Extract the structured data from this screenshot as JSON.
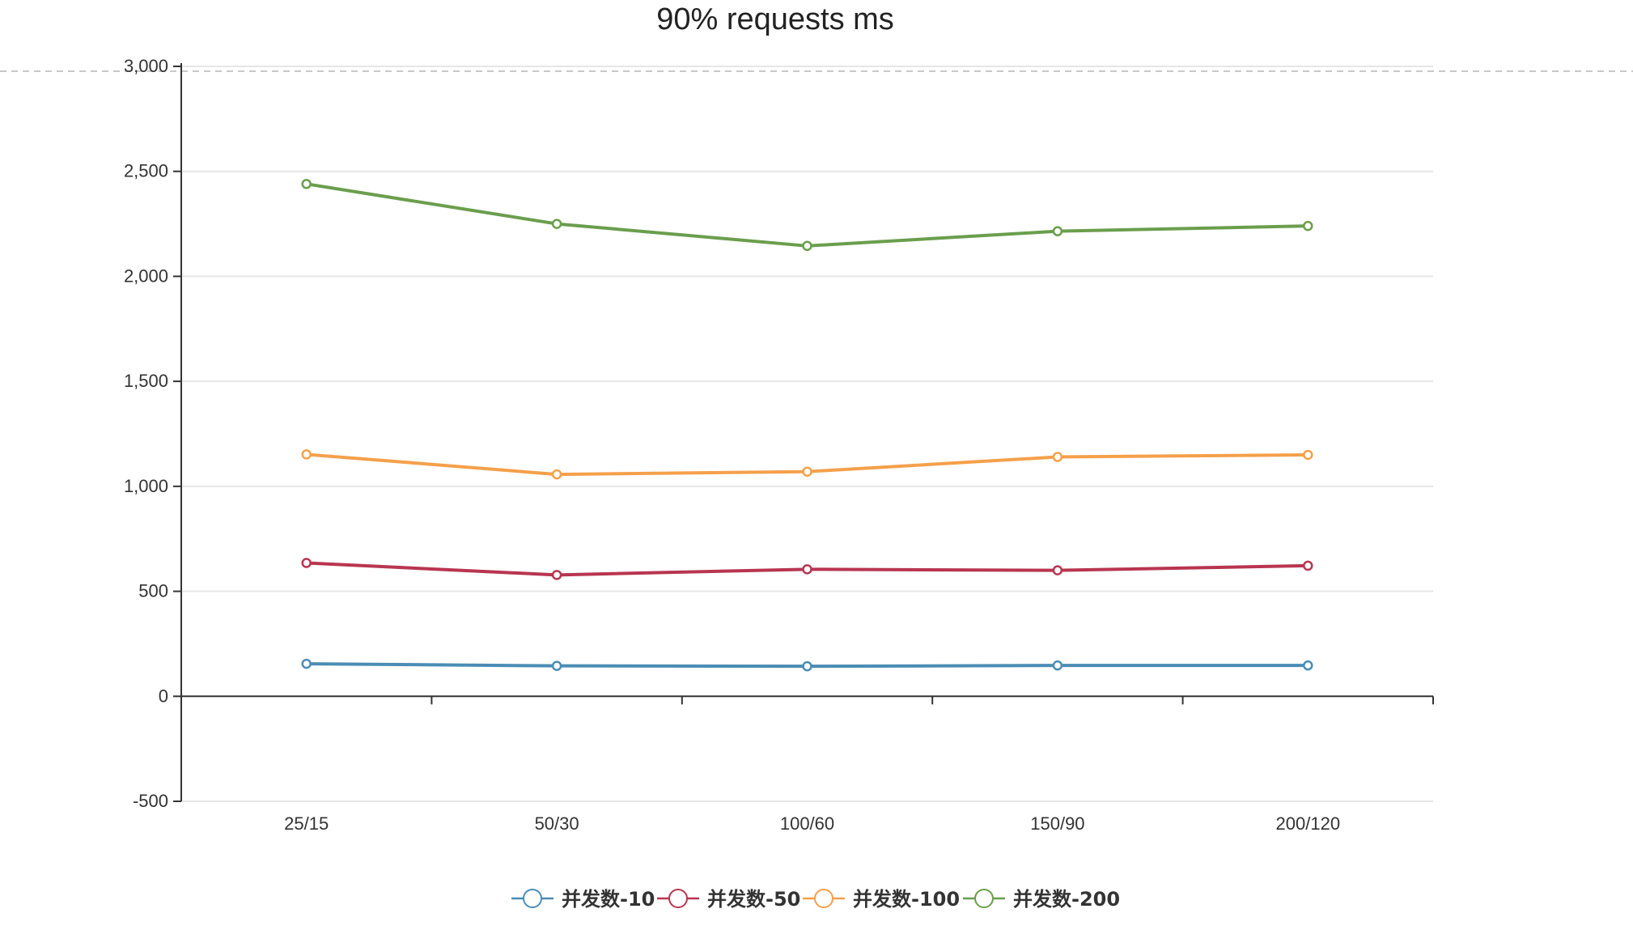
{
  "chart_data": {
    "type": "line",
    "title": "90% requests ms",
    "categories": [
      "25/15",
      "50/30",
      "100/60",
      "150/90",
      "200/120"
    ],
    "ylim": [
      -500,
      3000
    ],
    "yticks": [
      -500,
      0,
      500,
      1000,
      1500,
      2000,
      2500,
      3000
    ],
    "ytick_labels": [
      "-500",
      "0",
      "500",
      "1,000",
      "1,500",
      "2,000",
      "2,500",
      "3,000"
    ],
    "grid": true,
    "legend_position": "bottom-center",
    "series": [
      {
        "name": "并发数-10",
        "color": "#4a8db5",
        "values": [
          155,
          145,
          143,
          147,
          147
        ]
      },
      {
        "name": "并发数-50",
        "color": "#b83550",
        "values": [
          635,
          578,
          605,
          600,
          622
        ]
      },
      {
        "name": "并发数-100",
        "color": "#f5a04a",
        "values": [
          1152,
          1057,
          1070,
          1140,
          1150
        ]
      },
      {
        "name": "并发数-200",
        "color": "#6a9e4c",
        "values": [
          2440,
          2250,
          2145,
          2215,
          2240
        ]
      }
    ]
  }
}
